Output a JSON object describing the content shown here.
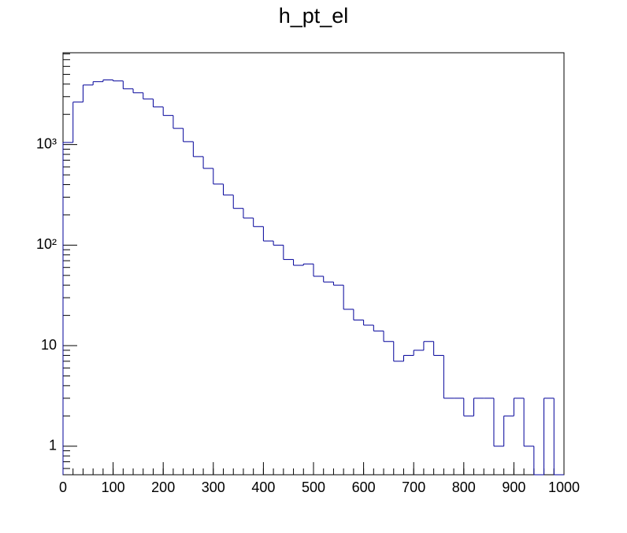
{
  "chart_data": {
    "type": "histogram",
    "title": "h_pt_el",
    "bins": [
      0,
      20,
      40,
      60,
      80,
      100,
      120,
      140,
      160,
      180,
      200,
      220,
      240,
      260,
      280,
      300,
      320,
      340,
      360,
      380,
      400,
      420,
      440,
      460,
      480,
      500,
      520,
      540,
      560,
      580,
      600,
      620,
      640,
      660,
      680,
      700,
      720,
      740,
      760,
      780,
      800,
      820,
      840,
      860,
      880,
      900,
      920,
      940,
      960,
      980,
      1000
    ],
    "values": [
      1050,
      2650,
      3920,
      4230,
      4400,
      4300,
      3590,
      3280,
      2840,
      2370,
      1950,
      1450,
      1070,
      760,
      580,
      405,
      315,
      232,
      186,
      153,
      110,
      100,
      72,
      63,
      65,
      49,
      43,
      40,
      23,
      18,
      16,
      14,
      11,
      7,
      8,
      9,
      11,
      8,
      3,
      3,
      2,
      3,
      3,
      1,
      2,
      3,
      1,
      0,
      3,
      0
    ],
    "color": "#000099",
    "xlim": [
      0,
      1000
    ],
    "xticks": [
      0,
      100,
      200,
      300,
      400,
      500,
      600,
      700,
      800,
      900,
      1000
    ],
    "ylim": [
      0.52,
      8200
    ],
    "log_y": true,
    "yticks": [
      1,
      10,
      {
        "value": 100,
        "label": "10²"
      },
      {
        "value": 1000,
        "label": "10³"
      }
    ]
  }
}
